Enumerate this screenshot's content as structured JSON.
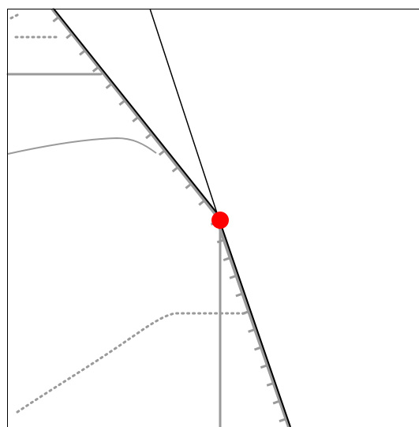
{
  "map": {
    "style": "embankment-line-diagram",
    "colors": {
      "background": "#ffffff",
      "frame": "#000000",
      "guide_line": "#000000",
      "embankment_edge": "#000000",
      "hachure": "#9a9a9a",
      "road": "#9a9a9a",
      "track": "#9a9a9a",
      "marker": "#ff0000"
    },
    "features": {
      "embankment": {
        "kind": "slope-with-hachures"
      },
      "guide_line": {
        "kind": "straight-line"
      },
      "roads": [
        {
          "id": "road-upper-left",
          "kind": "solid-road"
        },
        {
          "id": "road-middle-curve",
          "kind": "solid-road"
        },
        {
          "id": "road-vertical",
          "kind": "solid-road"
        }
      ],
      "tracks": [
        {
          "id": "track-top-left",
          "kind": "dotted-track"
        },
        {
          "id": "track-lower-curve",
          "kind": "dotted-track"
        }
      ],
      "marker": {
        "kind": "location-dot",
        "icon": "red-circle-marker"
      }
    }
  }
}
